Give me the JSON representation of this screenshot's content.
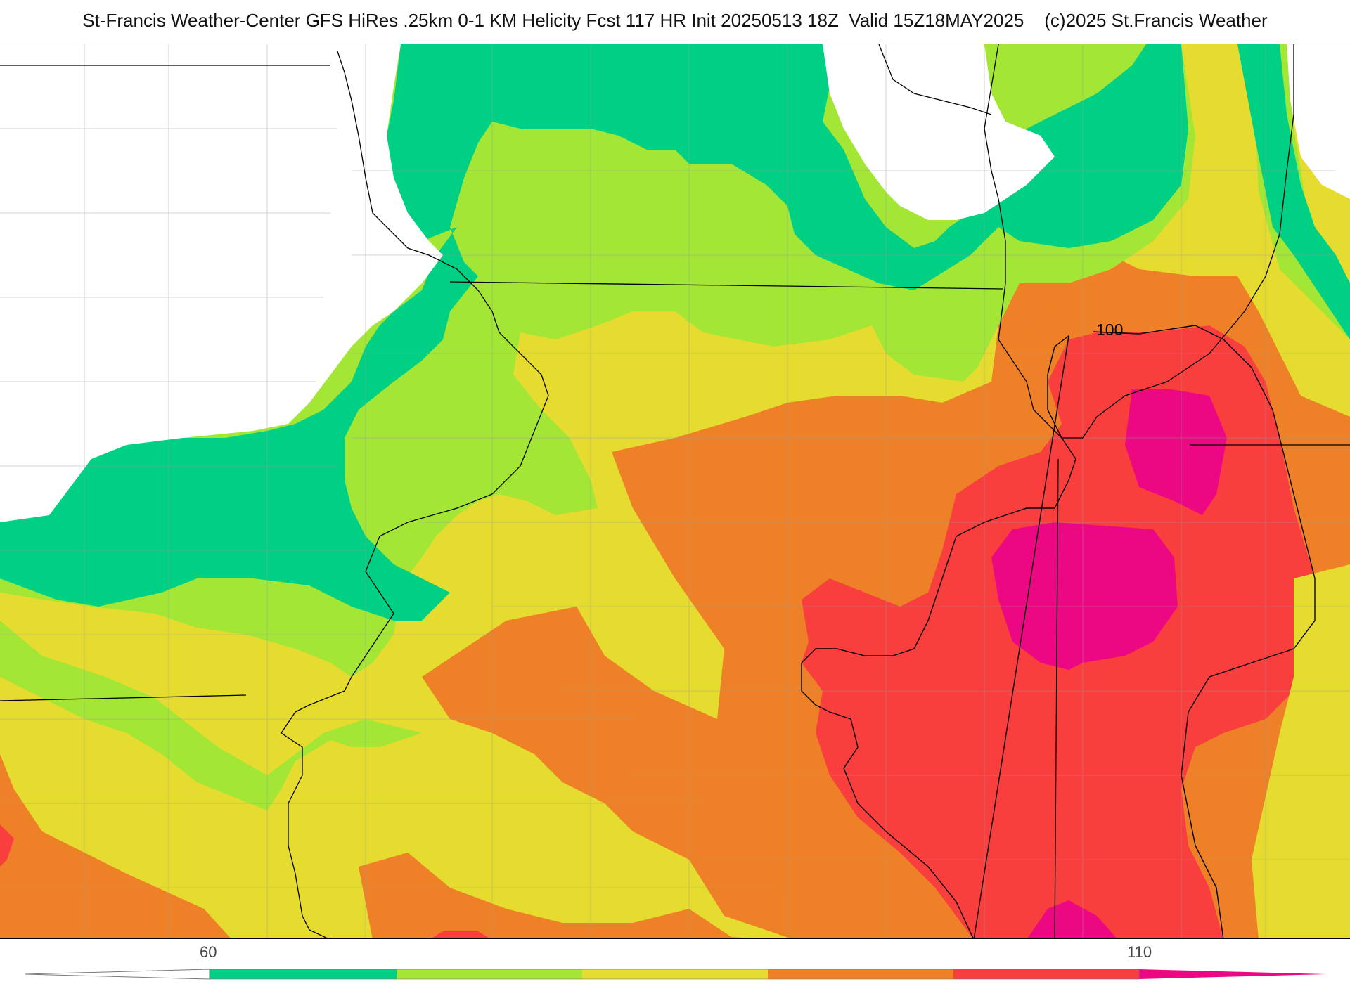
{
  "title": "St-Francis Weather-Center GFS HiRes .25km 0-1 KM Helicity Fcst 117 HR Init 20250513 18Z  Valid 15Z18MAY2025    (c)2025 St.Francis Weather",
  "contour_label": "100",
  "colorbar": {
    "tick_labels": [
      "60",
      "110"
    ],
    "colors": [
      "#00d084",
      "#a3e635",
      "#e5dc2f",
      "#ee8127",
      "#f93e3e",
      "#ec0783"
    ]
  },
  "palette": {
    "below_range": "#ffffff",
    "band_1": "#00d084",
    "band_2": "#a3e635",
    "band_3": "#e5dc2f",
    "band_4": "#ee8127",
    "band_5": "#f93e3e",
    "band_6": "#ec0783",
    "boundary": "#000000",
    "county_line": "#9a9a9a"
  }
}
